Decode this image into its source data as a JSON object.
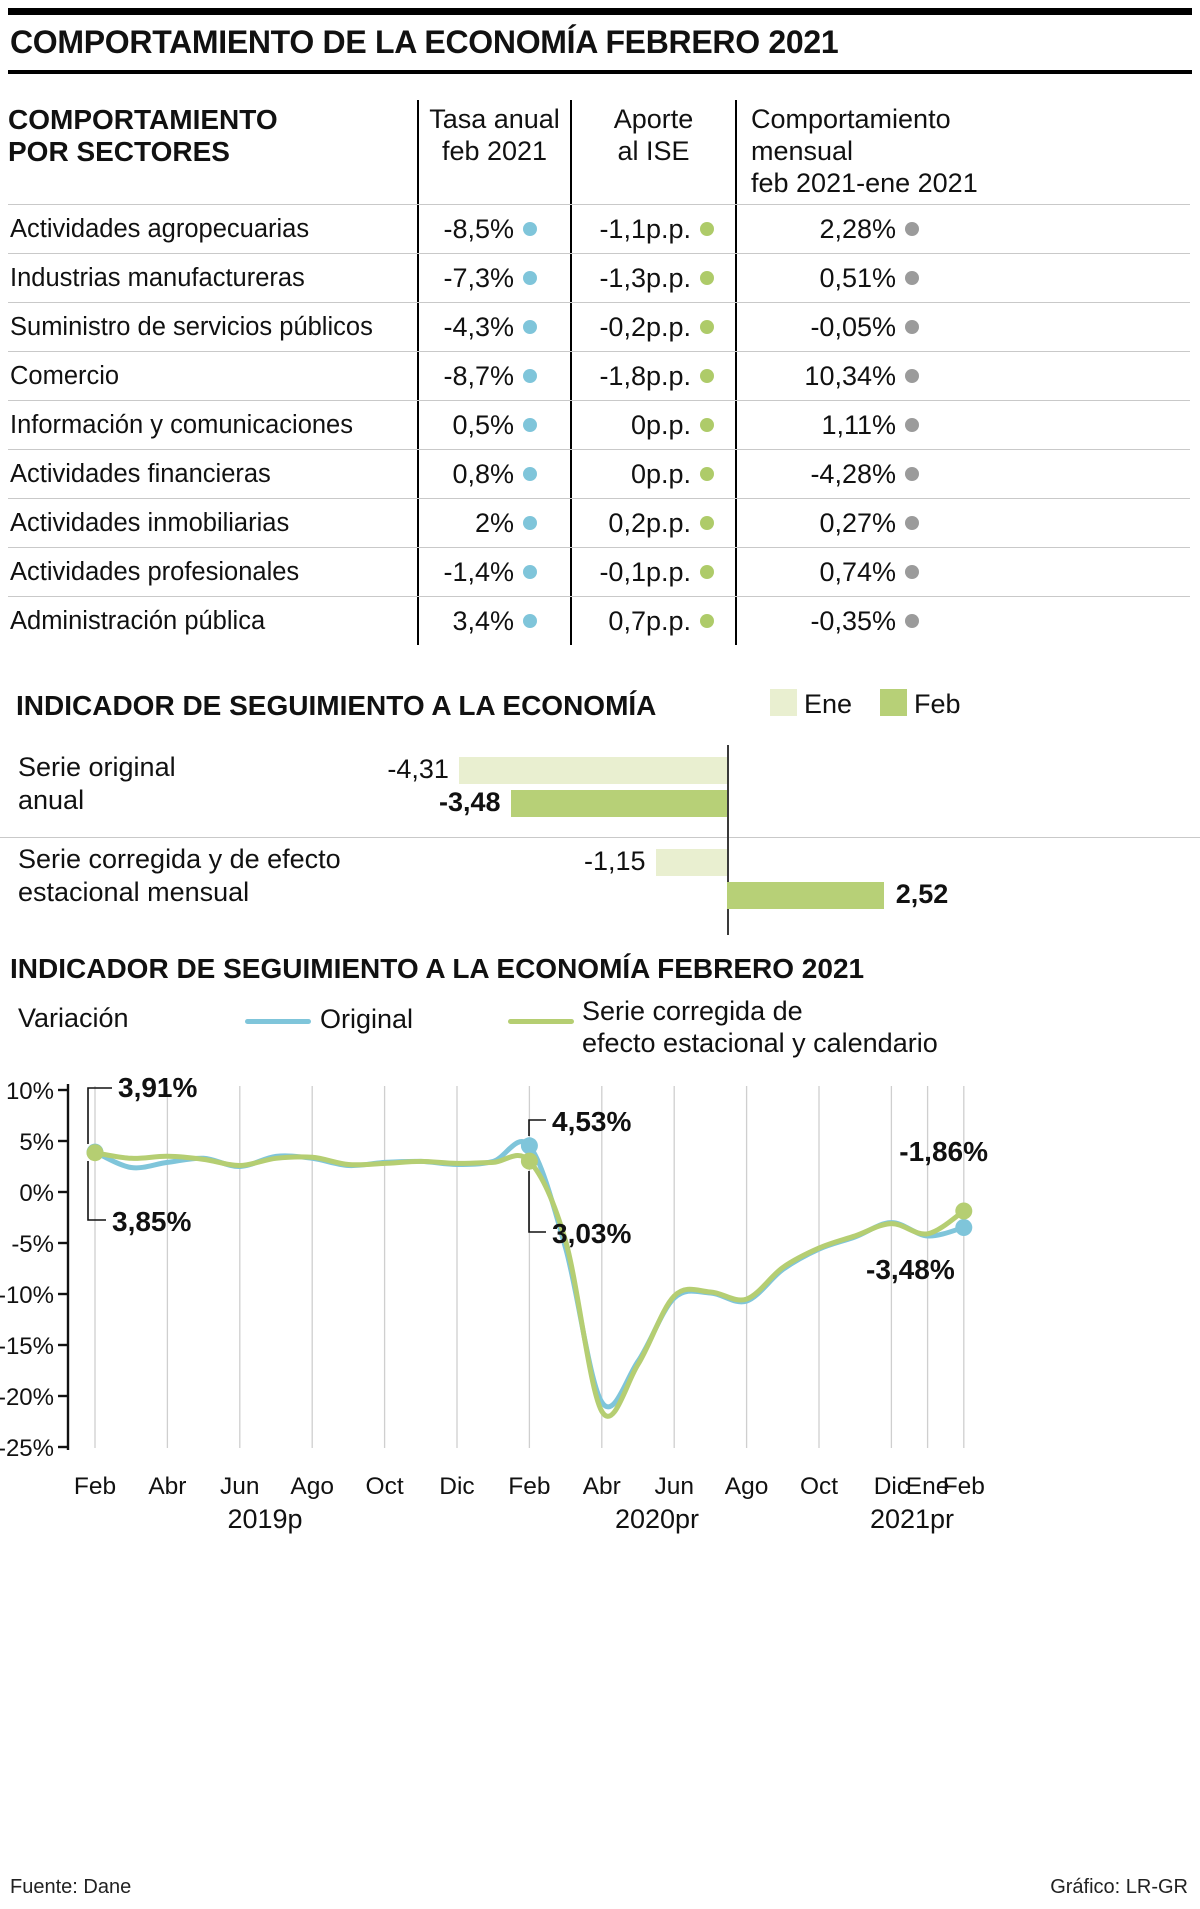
{
  "header": {
    "title": "COMPORTAMIENTO DE LA ECONOMÍA FEBRERO 2021"
  },
  "chart_data": [
    {
      "type": "table",
      "corner_title": "COMPORTAMIENTO\nPOR SECTORES",
      "column_headers": [
        "Tasa anual\nfeb 2021",
        "Aporte\nal ISE",
        "Comportamiento\nmensual\nfeb 2021-ene 2021"
      ],
      "dot_colors": {
        "tasa": "#7fc5da",
        "aporte": "#aecb69",
        "mensual": "#9b9b9b"
      },
      "rows": [
        [
          "Actividades agropecuarias",
          "-8,5%",
          "-1,1p.p.",
          "2,28%"
        ],
        [
          "Industrias manufactureras",
          "-7,3%",
          "-1,3p.p.",
          "0,51%"
        ],
        [
          "Suministro de servicios públicos",
          "-4,3%",
          "-0,2p.p.",
          "-0,05%"
        ],
        [
          "Comercio",
          "-8,7%",
          "-1,8p.p.",
          "10,34%"
        ],
        [
          "Información y comunicaciones",
          "0,5%",
          "0p.p.",
          "1,11%"
        ],
        [
          "Actividades financieras",
          "0,8%",
          "0p.p.",
          "-4,28%"
        ],
        [
          "Actividades inmobiliarias",
          "2%",
          "0,2p.p.",
          "0,27%"
        ],
        [
          "Actividades profesionales",
          "-1,4%",
          "-0,1p.p.",
          "0,74%"
        ],
        [
          "Administración pública",
          "3,4%",
          "0,7p.p.",
          "-0,35%"
        ]
      ]
    },
    {
      "type": "bar",
      "title": "INDICADOR DE SEGUIMIENTO A LA ECONOMÍA",
      "categories": [
        "Serie original\nanual",
        "Serie corregida y de efecto\nestacional mensual"
      ],
      "series": [
        {
          "name": "Ene",
          "color": "#e9efd0",
          "values": [
            -4.31,
            -1.15
          ],
          "labels": [
            "-4,31",
            "-1,15"
          ]
        },
        {
          "name": "Feb",
          "color": "#b7d077",
          "values": [
            -3.48,
            2.52
          ],
          "labels": [
            "-3,48",
            "2,52"
          ]
        }
      ]
    },
    {
      "type": "line",
      "title": "INDICADOR DE SEGUIMIENTO A LA ECONOMÍA FEBRERO 2021",
      "ylabel": "Variación",
      "ylim": [
        -25,
        10
      ],
      "yticks": [
        10,
        5,
        0,
        -5,
        -10,
        -15,
        -20,
        -25
      ],
      "n_points": 25,
      "tick_indices": [
        0,
        2,
        4,
        6,
        8,
        10,
        12,
        14,
        16,
        18,
        20,
        22,
        23,
        24
      ],
      "tick_labels": [
        "Feb",
        "Abr",
        "Jun",
        "Ago",
        "Oct",
        "Dic",
        "Feb",
        "Abr",
        "Jun",
        "Ago",
        "Oct",
        "Dic",
        "Ene",
        "Feb"
      ],
      "year_labels": [
        "2019p",
        "2020pr",
        "2021pr"
      ],
      "series": [
        {
          "name": "Original",
          "color": "#7fc5da",
          "values": [
            3.91,
            2.4,
            2.9,
            3.3,
            2.5,
            3.5,
            3.3,
            2.6,
            2.9,
            3.0,
            2.7,
            3.0,
            4.53,
            -5.5,
            -20.6,
            -16.6,
            -10.4,
            -9.9,
            -10.7,
            -7.6,
            -5.6,
            -4.4,
            -3.0,
            -4.31,
            -3.48
          ]
        },
        {
          "name": "Serie corregida de\nefecto estacional y calendario",
          "color": "#b5ce72",
          "values": [
            3.85,
            3.3,
            3.5,
            3.2,
            2.6,
            3.3,
            3.4,
            2.7,
            2.8,
            3.0,
            2.8,
            2.9,
            3.03,
            -4.8,
            -21.5,
            -16.9,
            -10.2,
            -9.8,
            -10.5,
            -7.4,
            -5.5,
            -4.3,
            -3.1,
            -4.1,
            -1.86
          ]
        }
      ],
      "annotations": [
        {
          "text": "3,91%",
          "series": "Original",
          "x_index": 0,
          "value": 3.91
        },
        {
          "text": "3,85%",
          "series": "Serie corregida",
          "x_index": 0,
          "value": 3.85
        },
        {
          "text": "4,53%",
          "series": "Original",
          "x_index": 12,
          "value": 4.53
        },
        {
          "text": "3,03%",
          "series": "Serie corregida",
          "x_index": 12,
          "value": 3.03
        },
        {
          "text": "-1,86%",
          "series": "Serie corregida",
          "x_index": 24,
          "value": -1.86
        },
        {
          "text": "-3,48%",
          "series": "Original",
          "x_index": 24,
          "value": -3.48
        }
      ]
    }
  ],
  "footer": {
    "source": "Fuente: Dane",
    "credit": "Gráfico: LR-GR"
  }
}
